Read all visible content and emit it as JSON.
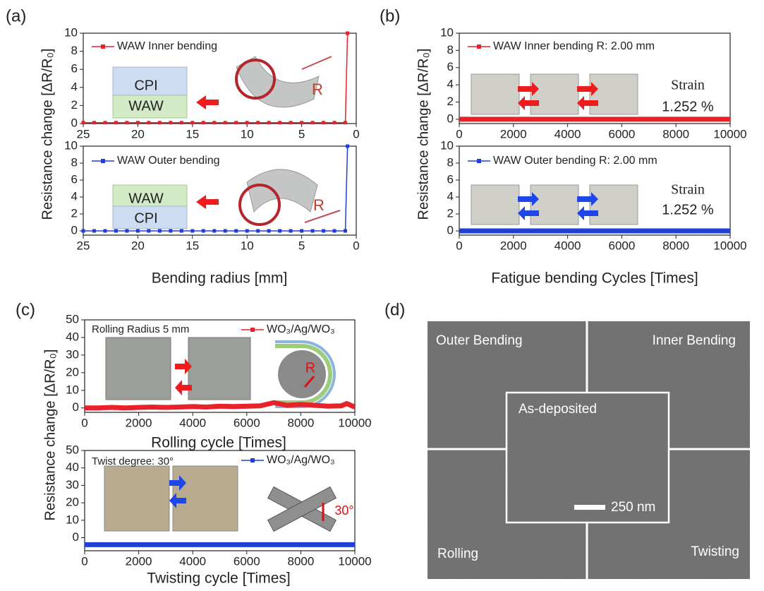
{
  "panel_labels": [
    "(a)",
    "(b)",
    "(c)",
    "(d)"
  ],
  "chart_data": [
    {
      "type": "line",
      "ylabel": "Resistance change [ΔR/R₀]",
      "x": [
        25,
        24,
        23,
        22,
        21,
        20,
        19,
        18,
        17,
        16,
        15,
        14,
        13,
        12,
        11,
        10,
        9,
        8,
        7,
        6,
        5,
        4,
        3,
        2,
        1,
        0.8
      ],
      "xlim": [
        25,
        0
      ],
      "xticks": [
        25,
        20,
        15,
        10,
        5,
        0
      ],
      "ylim": [
        0,
        10
      ],
      "yticks": [
        0,
        2,
        4,
        6,
        8,
        10
      ],
      "series": [
        {
          "name": "WAW  Inner bending",
          "color": "#e8222a",
          "values": [
            0.1,
            0.1,
            0.1,
            0.1,
            0.1,
            0.1,
            0.1,
            0.1,
            0.1,
            0.1,
            0.1,
            0.1,
            0.1,
            0.1,
            0.1,
            0.1,
            0.1,
            0.1,
            0.1,
            0.1,
            0.1,
            0.1,
            0.1,
            0.1,
            0.1,
            10
          ]
        }
      ],
      "annotations": [
        "CPI",
        "WAW",
        "R"
      ]
    },
    {
      "type": "line",
      "xlabel": "Bending radius [mm]",
      "x": [
        25,
        24,
        23,
        22,
        21,
        20,
        19,
        18,
        17,
        16,
        15,
        14,
        13,
        12,
        11,
        10,
        9,
        8,
        7,
        6,
        5,
        4,
        3,
        2,
        1,
        0.8
      ],
      "xlim": [
        25,
        0
      ],
      "xticks": [
        25,
        20,
        15,
        10,
        5,
        0
      ],
      "ylim": [
        -0.5,
        10
      ],
      "yticks": [
        0,
        2,
        4,
        6,
        8,
        10
      ],
      "series": [
        {
          "name": "WAW  Outer bending",
          "color": "#1f3fd6",
          "values": [
            0,
            0,
            0,
            0,
            0,
            0,
            0,
            0,
            0,
            0,
            0,
            0,
            0,
            0,
            0,
            0,
            0,
            0,
            0,
            0,
            0,
            0,
            0,
            0,
            0,
            10
          ]
        }
      ],
      "annotations": [
        "WAW",
        "CPI",
        "R"
      ]
    },
    {
      "type": "line",
      "ylabel": "Resistance change [ΔR/R₀]",
      "x": [
        0,
        1000,
        2000,
        3000,
        4000,
        5000,
        6000,
        7000,
        8000,
        9000,
        10000
      ],
      "xlim": [
        0,
        10000
      ],
      "xticks": [
        0,
        2000,
        4000,
        6000,
        8000,
        10000
      ],
      "ylim": [
        -0.5,
        10
      ],
      "yticks": [
        0,
        2,
        4,
        6,
        8,
        10
      ],
      "series": [
        {
          "name": "WAW  Inner bending R: 2.00 mm",
          "color": "#e8222a",
          "values": [
            0,
            0,
            0,
            0,
            0,
            0,
            0,
            0,
            0,
            0,
            0
          ]
        }
      ],
      "annotations": [
        "Strain",
        "1.252 %"
      ]
    },
    {
      "type": "line",
      "xlabel": "Fatigue bending Cycles [Times]",
      "x": [
        0,
        1000,
        2000,
        3000,
        4000,
        5000,
        6000,
        7000,
        8000,
        9000,
        10000
      ],
      "xlim": [
        0,
        10000
      ],
      "xticks": [
        0,
        2000,
        4000,
        6000,
        8000,
        10000
      ],
      "ylim": [
        -0.5,
        10
      ],
      "yticks": [
        0,
        2,
        4,
        6,
        8,
        10
      ],
      "series": [
        {
          "name": "WAW  Outer bending R: 2.00 mm",
          "color": "#1f3fd6",
          "values": [
            0,
            0,
            0,
            0,
            0,
            0,
            0,
            0,
            0,
            0,
            0
          ]
        }
      ],
      "annotations": [
        "Strain",
        "1.252 %"
      ]
    },
    {
      "type": "line",
      "ylabel": "Resistance change [ΔR/R₀]",
      "xlabel": "Rolling cycle [Times]",
      "x": [
        0,
        500,
        1000,
        1500,
        2000,
        2500,
        3000,
        3500,
        4000,
        4500,
        5000,
        5500,
        6000,
        6500,
        7000,
        7500,
        8000,
        8500,
        9000,
        9500,
        9700,
        10000
      ],
      "xlim": [
        0,
        10000
      ],
      "xticks": [
        0,
        2000,
        4000,
        6000,
        8000,
        10000
      ],
      "ylim": [
        -2.5,
        50
      ],
      "yticks": [
        0,
        10,
        20,
        30,
        40,
        50
      ],
      "series": [
        {
          "name": "WO₃/Ag/WO₃",
          "color": "#e8222a",
          "values": [
            0,
            0,
            0.3,
            0,
            0.3,
            0.5,
            0.3,
            0.5,
            0.8,
            0.5,
            1,
            0.8,
            1,
            1.2,
            3,
            1.5,
            2,
            1.5,
            1,
            1.2,
            2.5,
            0.5
          ]
        }
      ],
      "annotations": [
        "Rolling Radius 5 mm",
        "R"
      ]
    },
    {
      "type": "line",
      "xlabel": "Twisting cycle [Times]",
      "x": [
        0,
        1000,
        2000,
        3000,
        4000,
        5000,
        6000,
        7000,
        8000,
        9000,
        10000
      ],
      "xlim": [
        0,
        10000
      ],
      "xticks": [
        0,
        2000,
        4000,
        6000,
        8000,
        10000
      ],
      "ylim": [
        -7.5,
        50
      ],
      "yticks": [
        0,
        10,
        20,
        30,
        40,
        50
      ],
      "series": [
        {
          "name": "WO₃/Ag/WO₃",
          "color": "#1f3fd6",
          "values": [
            -4,
            -4,
            -4,
            -4,
            -4,
            -4,
            -4,
            -4,
            -4,
            -4,
            -4
          ]
        }
      ],
      "annotations": [
        "Twist degree: 30°",
        "30°"
      ]
    }
  ],
  "sem_image": {
    "labels": [
      "Outer Bending",
      "Inner Bending",
      "As-deposited",
      "Rolling",
      "Twisting"
    ],
    "scale_bar": "250 nm"
  }
}
